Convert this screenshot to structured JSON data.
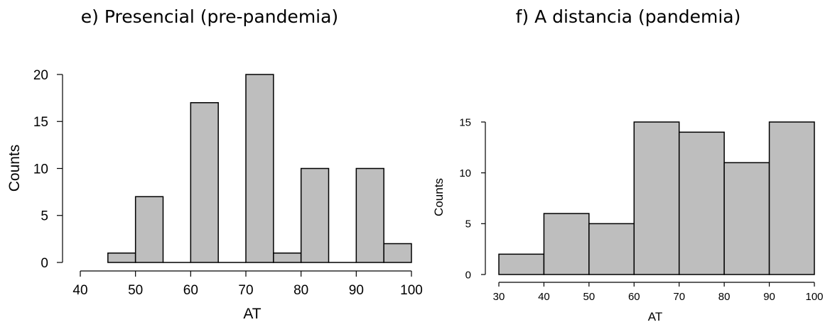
{
  "colors": {
    "bar_fill": "#bebebe",
    "bar_stroke": "#000000",
    "background": "#ffffff"
  },
  "chart_data": [
    {
      "type": "bar",
      "title": "e) Presencial (pre-pandemia)",
      "xlabel": "AT",
      "ylabel": "Counts",
      "xlim": [
        40,
        100
      ],
      "ylim": [
        0,
        20
      ],
      "x_ticks": [
        40,
        50,
        60,
        70,
        80,
        90,
        100
      ],
      "y_ticks": [
        0,
        5,
        10,
        15,
        20
      ],
      "bins": [
        {
          "start": 45,
          "end": 50,
          "count": 1
        },
        {
          "start": 50,
          "end": 55,
          "count": 7
        },
        {
          "start": 55,
          "end": 60,
          "count": 0
        },
        {
          "start": 60,
          "end": 65,
          "count": 17
        },
        {
          "start": 65,
          "end": 70,
          "count": 0
        },
        {
          "start": 70,
          "end": 75,
          "count": 20
        },
        {
          "start": 75,
          "end": 80,
          "count": 1
        },
        {
          "start": 80,
          "end": 85,
          "count": 10
        },
        {
          "start": 85,
          "end": 90,
          "count": 0
        },
        {
          "start": 90,
          "end": 95,
          "count": 10
        },
        {
          "start": 95,
          "end": 100,
          "count": 2
        }
      ],
      "grid": false
    },
    {
      "type": "bar",
      "title": "f) A distancia (pandemia)",
      "xlabel": "AT",
      "ylabel": "Counts",
      "xlim": [
        30,
        100
      ],
      "ylim": [
        0,
        15
      ],
      "x_ticks": [
        30,
        40,
        50,
        60,
        70,
        80,
        90,
        100
      ],
      "y_ticks": [
        0,
        5,
        10,
        15
      ],
      "bins": [
        {
          "start": 30,
          "end": 40,
          "count": 2
        },
        {
          "start": 40,
          "end": 50,
          "count": 6
        },
        {
          "start": 50,
          "end": 60,
          "count": 5
        },
        {
          "start": 60,
          "end": 70,
          "count": 15
        },
        {
          "start": 70,
          "end": 80,
          "count": 14
        },
        {
          "start": 80,
          "end": 90,
          "count": 11
        },
        {
          "start": 90,
          "end": 100,
          "count": 15
        }
      ],
      "grid": false
    }
  ]
}
